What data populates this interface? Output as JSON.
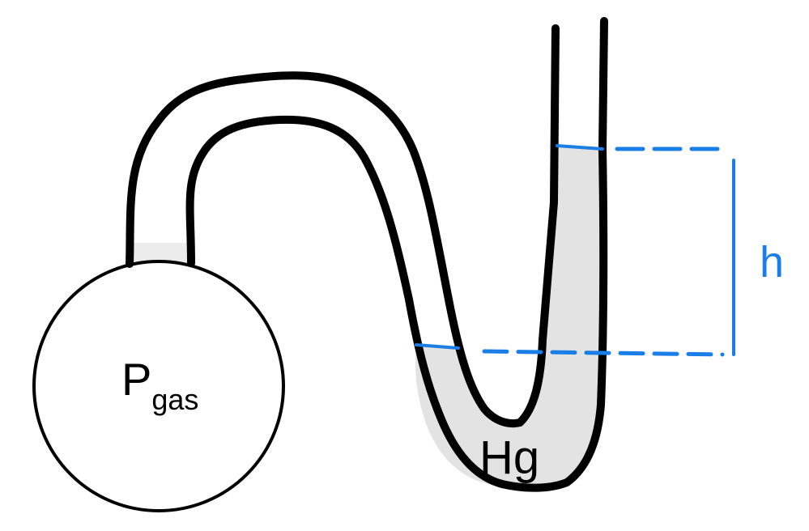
{
  "diagram": {
    "labels": {
      "pressure_symbol": "P",
      "pressure_subscript": "gas",
      "fluid": "Hg",
      "height": "h"
    },
    "colors": {
      "outline": "#000000",
      "fluid_fill": "#e3e3e3",
      "measure": "#1a7ee6",
      "background": "#ffffff"
    }
  }
}
